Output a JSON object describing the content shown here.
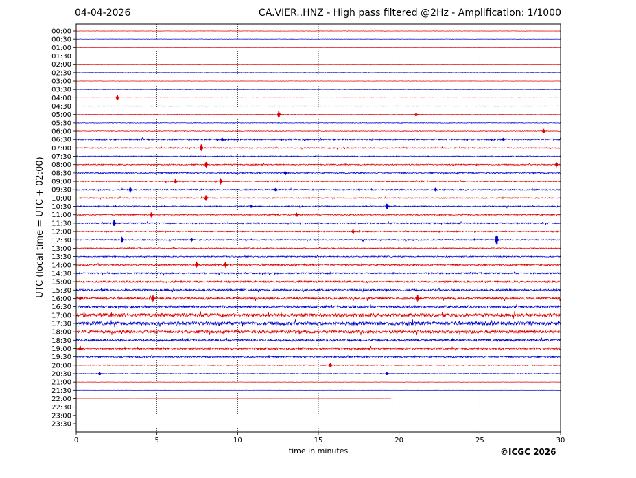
{
  "header": {
    "date": "04-04-2026",
    "title": "CA.VIER..HNZ - High pass filtered @2Hz - Amplification: 1/1000"
  },
  "copyright": "©ICGC 2026",
  "chart_data": {
    "type": "line",
    "title": "CA.VIER..HNZ - High pass filtered @2Hz - Amplification: 1/1000",
    "xlabel": "time in minutes",
    "ylabel": "UTC (local time = UTC + 02:00)",
    "xlim": [
      0,
      30
    ],
    "x_ticks": [
      "0",
      "5",
      "10",
      "15",
      "20",
      "25",
      "30"
    ],
    "vertical_gridlines": [
      5,
      10,
      15,
      20,
      25
    ],
    "y_tick_labels": [
      "00:00",
      "00:30",
      "01:00",
      "01:30",
      "02:00",
      "02:30",
      "03:00",
      "03:30",
      "04:00",
      "04:30",
      "05:00",
      "05:30",
      "06:00",
      "06:30",
      "07:00",
      "07:30",
      "08:00",
      "08:30",
      "09:00",
      "09:30",
      "10:00",
      "10:30",
      "11:00",
      "11:30",
      "12:00",
      "12:30",
      "13:00",
      "13:30",
      "14:00",
      "14:30",
      "15:00",
      "15:30",
      "16:00",
      "16:30",
      "17:00",
      "17:30",
      "18:00",
      "18:30",
      "19:00",
      "19:30",
      "20:00",
      "20:30",
      "21:00",
      "21:30",
      "22:00",
      "22:30",
      "23:00",
      "23:30"
    ],
    "trace_colors": [
      "#e00000",
      "#0000d0"
    ],
    "last_trace_end_minute": 19.5,
    "trace_noise_level": [
      0.3,
      0.3,
      0.2,
      0.2,
      0.2,
      0.4,
      0.3,
      0.4,
      0.4,
      0.4,
      0.5,
      0.5,
      0.6,
      1.3,
      0.9,
      0.8,
      1.0,
      1.0,
      0.9,
      1.1,
      0.9,
      1.0,
      1.0,
      1.1,
      1.0,
      1.0,
      0.9,
      1.0,
      1.3,
      1.3,
      1.5,
      1.7,
      2.1,
      2.0,
      3.0,
      3.0,
      2.6,
      2.0,
      1.8,
      1.3,
      0.8,
      0.6,
      0.3,
      0.2,
      0.1,
      0,
      0,
      0
    ],
    "events": [
      {
        "row": 8,
        "minute": 2.6,
        "amp": 5
      },
      {
        "row": 10,
        "minute": 12.6,
        "amp": 7
      },
      {
        "row": 10,
        "minute": 21.1,
        "amp": 3
      },
      {
        "row": 12,
        "minute": 29.0,
        "amp": 4
      },
      {
        "row": 13,
        "minute": 9.1,
        "amp": 3
      },
      {
        "row": 13,
        "minute": 26.5,
        "amp": 3
      },
      {
        "row": 14,
        "minute": 7.8,
        "amp": 7
      },
      {
        "row": 16,
        "minute": 8.1,
        "amp": 5
      },
      {
        "row": 16,
        "minute": 29.8,
        "amp": 4
      },
      {
        "row": 17,
        "minute": 13.0,
        "amp": 4
      },
      {
        "row": 18,
        "minute": 9.0,
        "amp": 6
      },
      {
        "row": 18,
        "minute": 6.2,
        "amp": 4
      },
      {
        "row": 19,
        "minute": 3.4,
        "amp": 5
      },
      {
        "row": 19,
        "minute": 12.4,
        "amp": 3
      },
      {
        "row": 19,
        "minute": 22.3,
        "amp": 3
      },
      {
        "row": 20,
        "minute": 8.1,
        "amp": 5
      },
      {
        "row": 21,
        "minute": 19.3,
        "amp": 5
      },
      {
        "row": 21,
        "minute": 10.9,
        "amp": 3
      },
      {
        "row": 22,
        "minute": 4.7,
        "amp": 4
      },
      {
        "row": 22,
        "minute": 13.7,
        "amp": 4
      },
      {
        "row": 23,
        "minute": 2.4,
        "amp": 6
      },
      {
        "row": 24,
        "minute": 17.2,
        "amp": 4
      },
      {
        "row": 25,
        "minute": 2.9,
        "amp": 6
      },
      {
        "row": 25,
        "minute": 26.1,
        "amp": 11
      },
      {
        "row": 25,
        "minute": 7.2,
        "amp": 3
      },
      {
        "row": 28,
        "minute": 7.5,
        "amp": 6
      },
      {
        "row": 28,
        "minute": 9.3,
        "amp": 5
      },
      {
        "row": 32,
        "minute": 4.8,
        "amp": 6
      },
      {
        "row": 32,
        "minute": 21.2,
        "amp": 6
      },
      {
        "row": 32,
        "minute": 0.3,
        "amp": 4
      },
      {
        "row": 38,
        "minute": 0.3,
        "amp": 4
      },
      {
        "row": 40,
        "minute": 15.8,
        "amp": 4
      },
      {
        "row": 41,
        "minute": 1.5,
        "amp": 3
      },
      {
        "row": 41,
        "minute": 19.3,
        "amp": 3
      }
    ]
  }
}
